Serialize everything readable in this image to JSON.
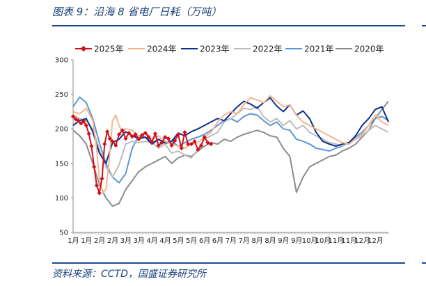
{
  "header": {
    "title": "图表 9：沿海 8 省电厂日耗（万吨）"
  },
  "footer": {
    "source": "资料来源：CCTD，国盛证券研究所"
  },
  "chart_data": {
    "type": "line",
    "title": "图表 9：沿海 8 省电厂日耗（万吨）",
    "xlabel": "",
    "ylabel": "",
    "ylim": [
      50,
      300
    ],
    "yticks": [
      50,
      100,
      150,
      200,
      250,
      300
    ],
    "month_labels": [
      "1月",
      "1月",
      "2月",
      "2月",
      "3月",
      "3月",
      "4月",
      "4月",
      "5月",
      "5月",
      "6月",
      "6月",
      "7月",
      "7月",
      "8月",
      "8月",
      "9月",
      "9月",
      "10月",
      "10月",
      "11月",
      "11月",
      "12月",
      "12月"
    ],
    "x_unit": "half-month index (0 = early Jan, 24 = end of Dec)",
    "legend_position": "top",
    "series": [
      {
        "name": "2025年",
        "color": "#d0101a",
        "markers": true,
        "x": [
          0,
          0.4,
          0.8,
          1.2,
          1.6,
          2,
          2.4,
          2.8,
          3.2,
          3.6,
          4,
          4.4,
          4.8,
          5.2,
          5.6,
          6,
          6.5,
          7,
          7.5,
          8,
          8.5,
          9,
          9.5,
          10,
          10.5,
          11,
          11.5,
          12,
          12.5,
          13,
          13.5,
          14,
          14.5,
          15,
          15.5,
          16,
          16.5,
          17,
          17.5,
          18,
          18.5,
          19,
          19.5,
          20,
          20.5,
          21
        ],
        "y": [
          218,
          214,
          212,
          208,
          211,
          205,
          193,
          175,
          145,
          118,
          107,
          128,
          178,
          196,
          186,
          182,
          176,
          192,
          198,
          186,
          194,
          189,
          192,
          185,
          191,
          194,
          188,
          181,
          193,
          176,
          180,
          188,
          186,
          176,
          183,
          192,
          172,
          195,
          178,
          178,
          182,
          170,
          176,
          188,
          180,
          178
        ]
      },
      {
        "name": "2024年",
        "color": "#f6b58e",
        "markers": false,
        "x": [
          0,
          1,
          2,
          3,
          3.5,
          4,
          4.5,
          5,
          5.5,
          6,
          6.5,
          7,
          7.5,
          8,
          9,
          10,
          11,
          12,
          13,
          14,
          15,
          16,
          17,
          18,
          19,
          20,
          21,
          22,
          23,
          24,
          25,
          26,
          27,
          28,
          29,
          30,
          31,
          32,
          33,
          34,
          35,
          36,
          37,
          38,
          39,
          40,
          41,
          42,
          43,
          44,
          45,
          46,
          47,
          48
        ],
        "y": [
          225,
          222,
          230,
          212,
          178,
          128,
          108,
          112,
          155,
          212,
          220,
          205,
          195,
          200,
          198,
          188,
          195,
          185,
          190,
          182,
          178,
          175,
          172,
          178,
          180,
          188,
          195,
          210,
          220,
          225,
          222,
          235,
          245,
          242,
          238,
          248,
          240,
          232,
          235,
          220,
          210,
          205,
          200,
          195,
          190,
          185,
          180,
          178,
          185,
          192,
          205,
          220,
          210,
          205
        ]
      },
      {
        "name": "2023年",
        "color": "#0c2f8c",
        "markers": false,
        "x": [
          0,
          1,
          2,
          3,
          4,
          5,
          6,
          7,
          8,
          9,
          10,
          11,
          12,
          13,
          14,
          15,
          16,
          17,
          18,
          19,
          20,
          21,
          22,
          23,
          24,
          25,
          26,
          27,
          28,
          29,
          30,
          31,
          32,
          33,
          34,
          35,
          36,
          37,
          38,
          39,
          40,
          41,
          42,
          43,
          44,
          45,
          46,
          47,
          48
        ],
        "y": [
          205,
          212,
          215,
          196,
          165,
          150,
          180,
          185,
          196,
          190,
          186,
          188,
          178,
          185,
          180,
          182,
          194,
          190,
          196,
          200,
          205,
          210,
          215,
          212,
          222,
          232,
          240,
          236,
          230,
          238,
          245,
          233,
          225,
          235,
          220,
          226,
          215,
          195,
          182,
          178,
          175,
          178,
          180,
          190,
          205,
          215,
          228,
          232,
          210
        ]
      },
      {
        "name": "2022年",
        "color": "#bdbdbd",
        "markers": false,
        "x": [
          0,
          1,
          2,
          3,
          4,
          5,
          6,
          7,
          8,
          9,
          10,
          11,
          12,
          13,
          14,
          15,
          16,
          17,
          18,
          19,
          20,
          21,
          22,
          23,
          24,
          25,
          26,
          27,
          28,
          29,
          30,
          31,
          32,
          33,
          34,
          35,
          36,
          37,
          38,
          39,
          40,
          41,
          42,
          43,
          44,
          45,
          46,
          47,
          48
        ],
        "y": [
          220,
          215,
          212,
          200,
          170,
          145,
          130,
          148,
          178,
          182,
          180,
          182,
          180,
          172,
          178,
          165,
          168,
          162,
          158,
          170,
          185,
          190,
          195,
          210,
          215,
          222,
          230,
          228,
          232,
          218,
          210,
          215,
          205,
          212,
          200,
          205,
          195,
          190,
          185,
          180,
          178,
          175,
          180,
          185,
          190,
          198,
          205,
          200,
          195
        ]
      },
      {
        "name": "2021年",
        "color": "#5a97d4",
        "markers": false,
        "x": [
          0,
          1,
          2,
          3,
          4,
          5,
          6,
          7,
          8,
          9,
          10,
          11,
          12,
          13,
          14,
          15,
          16,
          17,
          18,
          19,
          20,
          21,
          22,
          23,
          24,
          25,
          26,
          27,
          28,
          29,
          30,
          31,
          32,
          33,
          34,
          35,
          36,
          37,
          38,
          39,
          40,
          41,
          42,
          43,
          44,
          45,
          46,
          47,
          48
        ],
        "y": [
          232,
          246,
          238,
          215,
          180,
          150,
          130,
          122,
          135,
          172,
          190,
          188,
          180,
          185,
          178,
          182,
          175,
          180,
          185,
          188,
          192,
          198,
          205,
          212,
          215,
          210,
          218,
          222,
          220,
          212,
          205,
          210,
          200,
          198,
          185,
          182,
          178,
          172,
          170,
          168,
          172,
          175,
          180,
          188,
          195,
          205,
          215,
          218,
          212
        ]
      },
      {
        "name": "2020年",
        "color": "#8c8c8c",
        "markers": false,
        "x": [
          0,
          1,
          2,
          3,
          4,
          5,
          6,
          7,
          8,
          9,
          10,
          11,
          12,
          13,
          14,
          15,
          16,
          17,
          18,
          19,
          20,
          21,
          22,
          23,
          24,
          25,
          26,
          27,
          28,
          29,
          30,
          31,
          32,
          33,
          34,
          35,
          36,
          37,
          38,
          39,
          40,
          41,
          42,
          43,
          44,
          45,
          46,
          47,
          48
        ],
        "y": [
          198,
          190,
          178,
          150,
          120,
          100,
          88,
          92,
          112,
          125,
          138,
          145,
          150,
          155,
          160,
          150,
          158,
          162,
          160,
          168,
          175,
          180,
          178,
          185,
          182,
          188,
          192,
          195,
          198,
          195,
          190,
          188,
          172,
          160,
          108,
          130,
          145,
          150,
          155,
          160,
          162,
          168,
          172,
          178,
          188,
          198,
          215,
          228,
          240
        ]
      }
    ]
  }
}
